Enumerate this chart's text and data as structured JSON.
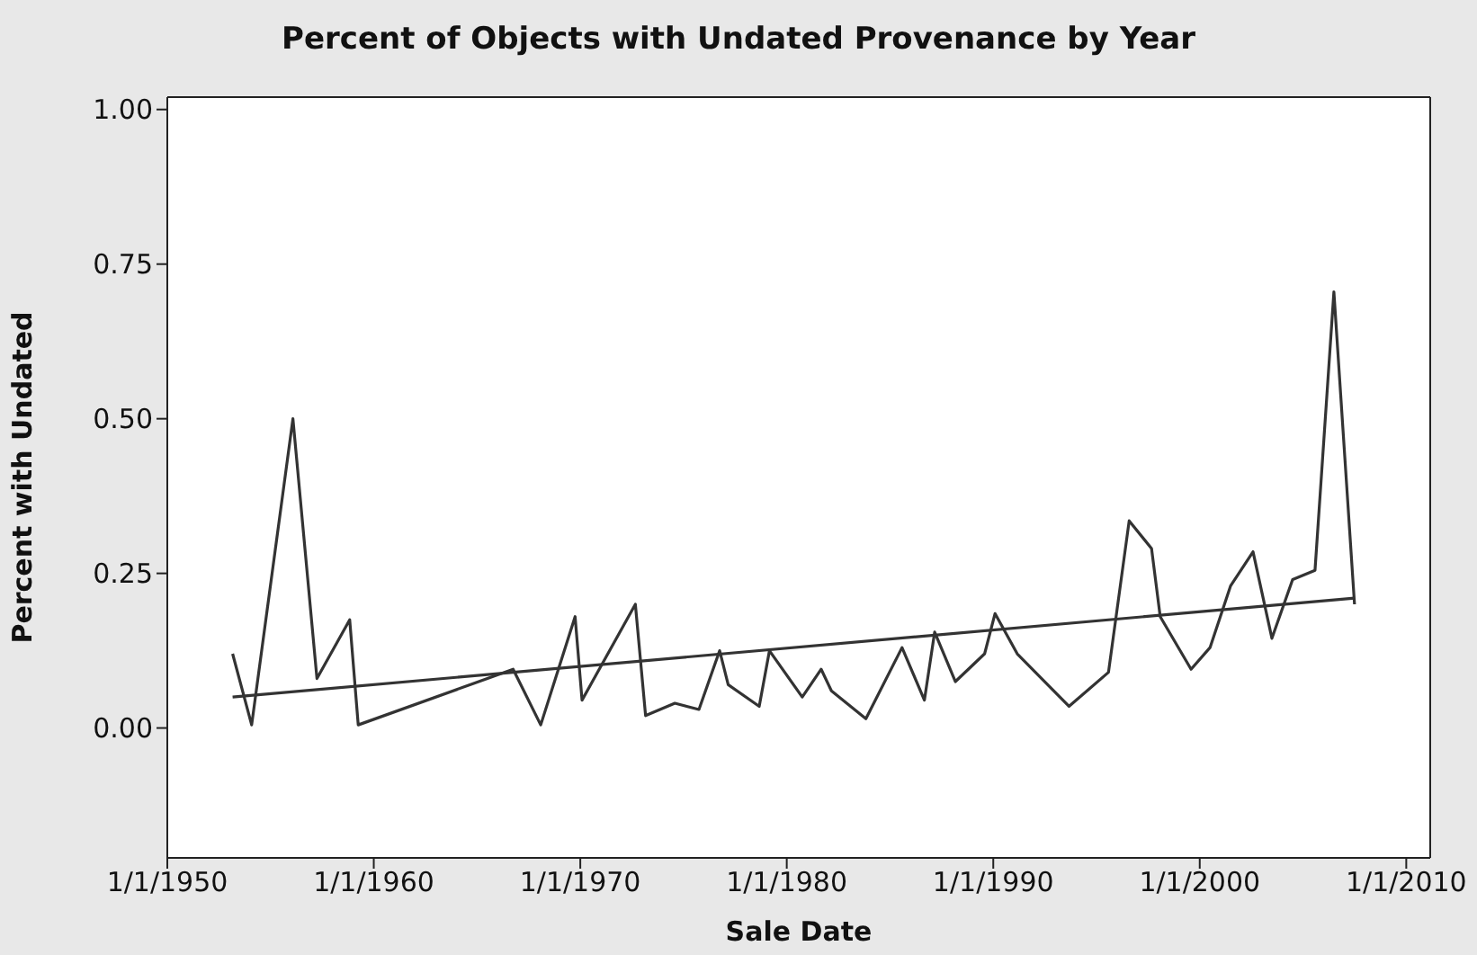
{
  "chart_data": {
    "type": "line",
    "title": "Percent of Objects with Undated Provenance by Year",
    "xlabel": "Sale Date",
    "ylabel": "Percent with Undated",
    "xlim": [
      "1950-01-01",
      "2011-03-01"
    ],
    "xticks": [
      {
        "value": "1950-01-01",
        "label": "1/1/1950"
      },
      {
        "value": "1960-01-01",
        "label": "1/1/1960"
      },
      {
        "value": "1970-01-01",
        "label": "1/1/1970"
      },
      {
        "value": "1980-01-01",
        "label": "1/1/1980"
      },
      {
        "value": "1990-01-01",
        "label": "1/1/1990"
      },
      {
        "value": "2000-01-01",
        "label": "1/1/2000"
      },
      {
        "value": "2010-01-01",
        "label": "1/1/2010"
      }
    ],
    "ylim": [
      -0.21,
      1.02
    ],
    "yticks": [
      {
        "value": 0,
        "label": "0.00"
      },
      {
        "value": 0.25,
        "label": "0.25"
      },
      {
        "value": 0.5,
        "label": "0.50"
      },
      {
        "value": 0.75,
        "label": "0.75"
      },
      {
        "value": 1,
        "label": "1.00"
      }
    ],
    "grid": false,
    "marker": "none",
    "line_style": "solid",
    "series": [
      {
        "color": "#333333",
        "x": [
          "1953-03",
          "1954-02",
          "1956-02",
          "1957-04",
          "1958-11",
          "1959-04",
          "1966-10",
          "1968-02",
          "1969-10",
          "1970-02",
          "1972-09",
          "1973-03",
          "1974-08",
          "1975-10",
          "1976-10",
          "1977-03",
          "1978-09",
          "1979-03",
          "1980-10",
          "1981-09",
          "1982-03",
          "1983-11",
          "1985-08",
          "1986-09",
          "1987-03",
          "1988-03",
          "1989-08",
          "1990-02",
          "1991-03",
          "1993-09",
          "1995-08",
          "1996-08",
          "1997-09",
          "1998-02",
          "1999-08",
          "2000-07",
          "2001-07",
          "2002-08",
          "2003-07",
          "2004-07",
          "2005-08",
          "2006-07",
          "2007-07"
        ],
        "values": [
          0.12,
          0.005,
          0.5,
          0.08,
          0.175,
          0.005,
          0.095,
          0.005,
          0.18,
          0.045,
          0.2,
          0.02,
          0.04,
          0.03,
          0.125,
          0.07,
          0.035,
          0.125,
          0.05,
          0.095,
          0.06,
          0.015,
          0.13,
          0.045,
          0.155,
          0.075,
          0.12,
          0.185,
          0.12,
          0.035,
          0.09,
          0.335,
          0.29,
          0.18,
          0.095,
          0.13,
          0.23,
          0.285,
          0.145,
          0.24,
          0.255,
          0.705,
          0.2
        ]
      },
      {
        "type": "line",
        "color": "#333333",
        "x": [
          "1953-03",
          "2007-07"
        ],
        "values": [
          0.05,
          0.21
        ]
      }
    ]
  }
}
